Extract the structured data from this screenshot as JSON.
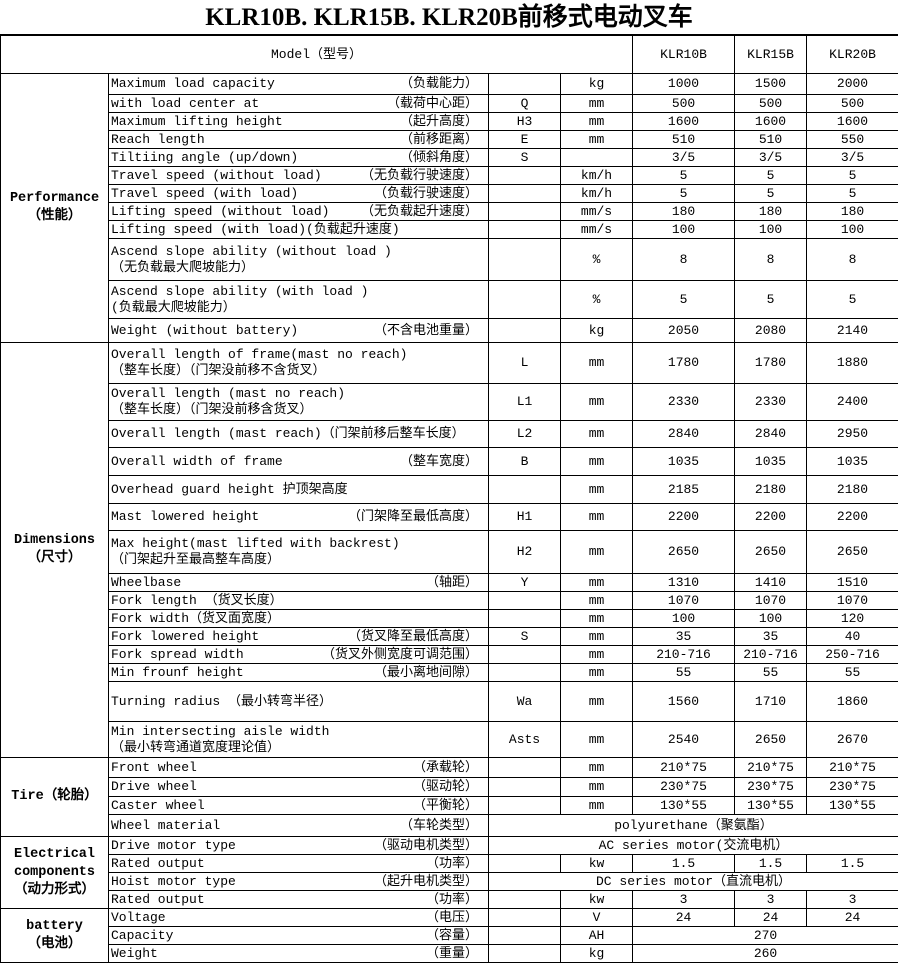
{
  "title": "KLR10B. KLR15B. KLR20B前移式电动叉车",
  "header": {
    "model_label": "Model（型号）",
    "models": [
      "KLR10B",
      "KLR15B",
      "KLR20B"
    ]
  },
  "groups": [
    {
      "en": "Performance",
      "zh": "（性能）",
      "rows": [
        {
          "en": "Maximum load capacity",
          "zh": "（负载能力）",
          "sym": "",
          "unit": "kg",
          "v": [
            "1000",
            "1500",
            "2000"
          ]
        },
        {
          "en": "with load center at",
          "zh": "（载荷中心距）",
          "sym": "Q",
          "unit": "mm",
          "v": [
            "500",
            "500",
            "500"
          ]
        },
        {
          "en": "Maximum lifting height",
          "zh": "（起升高度）",
          "sym": "H3",
          "unit": "mm",
          "v": [
            "1600",
            "1600",
            "1600"
          ]
        },
        {
          "en": "Reach length",
          "zh": "（前移距离）",
          "sym": "E",
          "unit": "mm",
          "v": [
            "510",
            "510",
            "550"
          ]
        },
        {
          "en": "Tiltiing angle (up/down)",
          "zh": "（倾斜角度）",
          "sym": "S",
          "unit": "",
          "v": [
            "3/5",
            "3/5",
            "3/5"
          ]
        },
        {
          "en": "Travel speed (without load)",
          "zh": "（无负载行驶速度）",
          "sym": "",
          "unit": "km/h",
          "v": [
            "5",
            "5",
            "5"
          ]
        },
        {
          "en": "Travel speed (with load)",
          "zh": "（负载行驶速度）",
          "sym": "",
          "unit": "km/h",
          "v": [
            "5",
            "5",
            "5"
          ]
        },
        {
          "en": "Lifting speed (without load)",
          "zh": "（无负载起升速度）",
          "sym": "",
          "unit": "mm/s",
          "v": [
            "180",
            "180",
            "180"
          ]
        },
        {
          "text": "Lifting speed (with load)(负载起升速度)",
          "sym": "",
          "unit": "mm/s",
          "v": [
            "100",
            "100",
            "100"
          ]
        },
        {
          "lines": [
            "Ascend slope ability (without load )",
            "（无负载最大爬坡能力）"
          ],
          "sym": "",
          "unit": "%",
          "v": [
            "8",
            "8",
            "8"
          ]
        },
        {
          "lines": [
            "Ascend slope ability (with load )",
            "(负载最大爬坡能力）"
          ],
          "sym": "",
          "unit": "%",
          "v": [
            "5",
            "5",
            "5"
          ]
        },
        {
          "en": "Weight (without battery)",
          "zh": "（不含电池重量）",
          "sym": "",
          "unit": "kg",
          "v": [
            "2050",
            "2080",
            "2140"
          ]
        }
      ]
    },
    {
      "en": "Dimensions",
      "zh": "（尺寸）",
      "rows": [
        {
          "lines": [
            "Overall length of frame(mast no reach)",
            "（整车长度）（门架没前移不含货叉）"
          ],
          "sym": "L",
          "unit": "mm",
          "v": [
            "1780",
            "1780",
            "1880"
          ]
        },
        {
          "lines": [
            "Overall length (mast no reach)",
            "（整车长度）（门架没前移含货叉）"
          ],
          "sym": "L1",
          "unit": "mm",
          "v": [
            "2330",
            "2330",
            "2400"
          ]
        },
        {
          "text": "Overall length (mast reach)（门架前移后整车长度）",
          "sym": "L2",
          "unit": "mm",
          "v": [
            "2840",
            "2840",
            "2950"
          ]
        },
        {
          "en": "Overall width of frame",
          "zh": "（整车宽度）",
          "sym": "B",
          "unit": "mm",
          "v": [
            "1035",
            "1035",
            "1035"
          ]
        },
        {
          "text": "Overhead guard height 护顶架高度",
          "sym": "",
          "unit": "mm",
          "v": [
            "2185",
            "2180",
            "2180"
          ]
        },
        {
          "en": "Mast lowered height",
          "zh": "（门架降至最低高度）",
          "sym": "H1",
          "unit": "mm",
          "v": [
            "2200",
            "2200",
            "2200"
          ]
        },
        {
          "lines": [
            "Max height(mast lifted with backrest)",
            "（门架起升至最高整车高度）"
          ],
          "sym": "H2",
          "unit": "mm",
          "v": [
            "2650",
            "2650",
            "2650"
          ]
        },
        {
          "en": "Wheelbase",
          "zh": "（轴距）",
          "sym": "Y",
          "unit": "mm",
          "v": [
            "1310",
            "1410",
            "1510"
          ]
        },
        {
          "text": "Fork length （货叉长度）",
          "sym": "",
          "unit": "mm",
          "v": [
            "1070",
            "1070",
            "1070"
          ]
        },
        {
          "text": "Fork width（货叉面宽度）",
          "sym": "",
          "unit": "mm",
          "v": [
            "100",
            "100",
            "120"
          ]
        },
        {
          "en": "Fork lowered height",
          "zh": "（货叉降至最低高度）",
          "sym": "S",
          "unit": "mm",
          "v": [
            "35",
            "35",
            "40"
          ]
        },
        {
          "en": "Fork spread width",
          "zh": "（货叉外侧宽度可调范围）",
          "sym": "",
          "unit": "mm",
          "v": [
            "210-716",
            "210-716",
            "250-716"
          ]
        },
        {
          "en": "Min frounf height",
          "zh": "（最小离地间隙）",
          "sym": "",
          "unit": "mm",
          "v": [
            "55",
            "55",
            "55"
          ]
        },
        {
          "text": "Turning radius  （最小转弯半径）",
          "sym": "Wa",
          "unit": "mm",
          "v": [
            "1560",
            "1710",
            "1860"
          ]
        },
        {
          "lines": [
            "Min intersecting aisle width",
            "（最小转弯通道宽度理论值）"
          ],
          "sym": "Asts",
          "unit": "mm",
          "v": [
            "2540",
            "2650",
            "2670"
          ]
        }
      ]
    },
    {
      "en": "Tire（轮胎）",
      "zh": "",
      "rows": [
        {
          "en": "Front wheel",
          "zh": "（承载轮）",
          "sym": "",
          "unit": "mm",
          "v": [
            "210*75",
            "210*75",
            "210*75"
          ]
        },
        {
          "en": "Drive wheel",
          "zh": "（驱动轮）",
          "sym": "",
          "unit": "mm",
          "v": [
            "230*75",
            "230*75",
            "230*75"
          ]
        },
        {
          "en": "Caster wheel",
          "zh": "（平衡轮）",
          "sym": "",
          "unit": "mm",
          "v": [
            "130*55",
            "130*55",
            "130*55"
          ]
        },
        {
          "en": "Wheel material",
          "zh": "（车轮类型）",
          "span": "polyurethane（聚氨酯）"
        }
      ]
    },
    {
      "en": "Electrical components",
      "zh": "（动力形式）",
      "rows": [
        {
          "en": "Drive motor type",
          "zh": "（驱动电机类型）",
          "span": "AC series motor(交流电机）"
        },
        {
          "en": "Rated output",
          "zh": "（功率）",
          "sym": "",
          "unit": "kw",
          "v": [
            "1.5",
            "1.5",
            "1.5"
          ]
        },
        {
          "en": "Hoist motor type",
          "zh": "（起升电机类型）",
          "span": "DC series motor（直流电机）"
        },
        {
          "en": "Rated output",
          "zh": "（功率）",
          "sym": "",
          "unit": "kw",
          "v": [
            "3",
            "3",
            "3"
          ]
        }
      ]
    },
    {
      "en": "battery",
      "zh": "（电池）",
      "rows": [
        {
          "en": "Voltage",
          "zh": "（电压）",
          "sym": "",
          "unit": "V",
          "v": [
            "24",
            "24",
            "24"
          ]
        },
        {
          "en": "Capacity",
          "zh": "（容量）",
          "sym": "",
          "unit": "AH",
          "vspan": "270"
        },
        {
          "en": "Weight",
          "zh": "（重量）",
          "sym": "",
          "unit": "kg",
          "vspan": "260"
        }
      ]
    }
  ]
}
